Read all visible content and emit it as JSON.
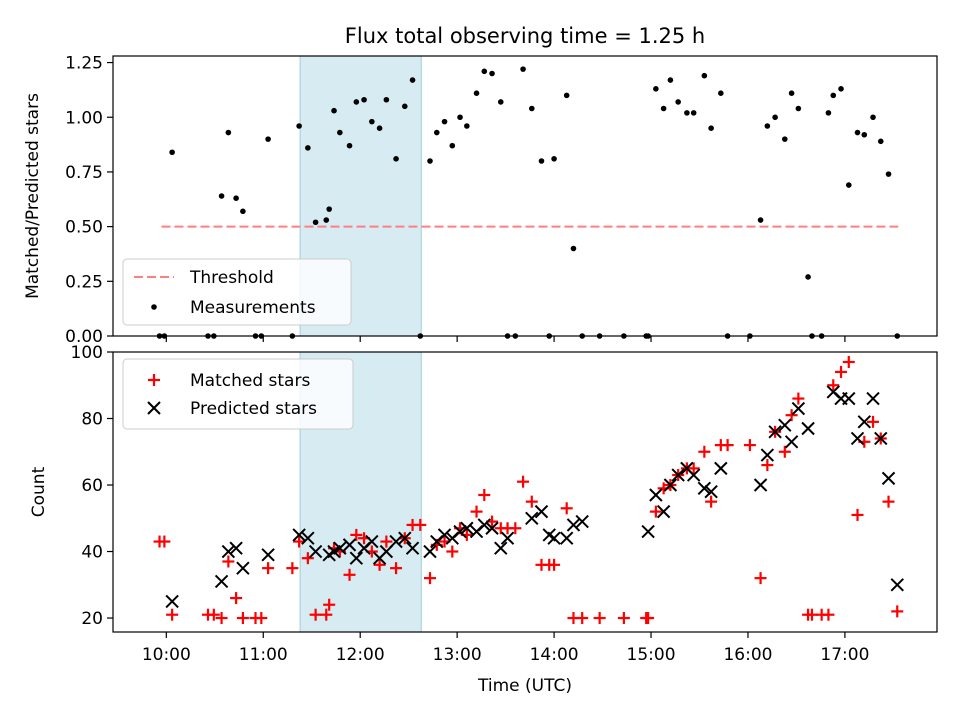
{
  "title": "Flux total observing time = 1.25 h",
  "chart_data": [
    {
      "type": "scatter",
      "panel": "top",
      "ylabel": "Matched/Predicted stars",
      "ylim": [
        0,
        1.28
      ],
      "yticks": [
        0.0,
        0.25,
        0.5,
        0.75,
        1.0,
        1.25
      ],
      "ytick_labels": [
        "0.00",
        "0.25",
        "0.50",
        "0.75",
        "1.00",
        "1.25"
      ],
      "xlim": [
        9.45,
        17.95
      ],
      "highlight_span": {
        "from": 11.38,
        "to": 12.63,
        "color": "#add8e6"
      },
      "legend_position": "lower-left",
      "threshold": {
        "name": "Threshold",
        "x": [
          9.95,
          17.55
        ],
        "y": 0.5,
        "color": "#ff7f7f",
        "style": "dashed"
      },
      "series": [
        {
          "name": "Measurements",
          "color": "#000000",
          "marker": "dot",
          "x": [
            9.93,
            9.98,
            10.06,
            10.43,
            10.49,
            10.57,
            10.64,
            10.72,
            10.79,
            10.92,
            10.98,
            11.05,
            11.3,
            11.37,
            11.46,
            11.54,
            11.65,
            11.68,
            11.73,
            11.79,
            11.89,
            11.96,
            12.04,
            12.12,
            12.2,
            12.27,
            12.37,
            12.46,
            12.54,
            12.62,
            12.72,
            12.79,
            12.87,
            12.95,
            13.03,
            13.1,
            13.2,
            13.28,
            13.36,
            13.45,
            13.52,
            13.6,
            13.68,
            13.77,
            13.87,
            13.95,
            14.0,
            14.13,
            14.2,
            14.29,
            14.47,
            14.72,
            14.95,
            14.97,
            15.05,
            15.13,
            15.2,
            15.28,
            15.37,
            15.44,
            15.55,
            15.62,
            15.72,
            15.79,
            16.02,
            16.13,
            16.2,
            16.28,
            16.38,
            16.45,
            16.52,
            16.62,
            16.66,
            16.76,
            16.83,
            16.88,
            16.96,
            17.04,
            17.13,
            17.2,
            17.29,
            17.37,
            17.45,
            17.54
          ],
          "y": [
            0.0,
            0.0,
            0.84,
            0.0,
            0.0,
            0.64,
            0.93,
            0.63,
            0.57,
            0.0,
            0.0,
            0.9,
            0.0,
            0.96,
            0.86,
            0.52,
            0.53,
            0.58,
            1.03,
            0.93,
            0.87,
            1.07,
            1.08,
            0.98,
            0.95,
            1.08,
            0.81,
            1.05,
            1.17,
            0.0,
            0.8,
            0.93,
            0.98,
            0.87,
            1.0,
            0.96,
            1.11,
            1.21,
            1.2,
            1.07,
            0.0,
            0.0,
            1.22,
            1.04,
            0.8,
            0.0,
            0.81,
            1.1,
            0.4,
            0.0,
            0.0,
            0.0,
            0.0,
            0.0,
            1.13,
            1.04,
            1.17,
            1.07,
            1.02,
            1.02,
            1.19,
            0.95,
            1.11,
            0.0,
            0.0,
            0.53,
            0.96,
            1.0,
            0.9,
            1.11,
            1.04,
            0.27,
            0.0,
            0.0,
            1.02,
            1.1,
            1.13,
            0.69,
            0.93,
            0.92,
            1.0,
            0.89,
            0.74,
            0.0
          ]
        }
      ]
    },
    {
      "type": "scatter",
      "panel": "bottom",
      "xlabel": "Time (UTC)",
      "ylabel": "Count",
      "ylim": [
        15.8,
        100
      ],
      "yticks": [
        20,
        40,
        60,
        80,
        100
      ],
      "xlim": [
        9.45,
        17.95
      ],
      "xticks": [
        10,
        11,
        12,
        13,
        14,
        15,
        16,
        17
      ],
      "xtick_labels": [
        "10:00",
        "11:00",
        "12:00",
        "13:00",
        "14:00",
        "15:00",
        "16:00",
        "17:00"
      ],
      "highlight_span": {
        "from": 11.38,
        "to": 12.63,
        "color": "#add8e6"
      },
      "legend_position": "top-left",
      "series": [
        {
          "name": "Matched stars",
          "color": "#ff0000",
          "marker": "plus",
          "x": [
            9.93,
            9.98,
            10.06,
            10.43,
            10.49,
            10.57,
            10.64,
            10.72,
            10.79,
            10.92,
            10.98,
            11.05,
            11.3,
            11.37,
            11.46,
            11.54,
            11.65,
            11.68,
            11.73,
            11.79,
            11.89,
            11.96,
            12.04,
            12.12,
            12.2,
            12.27,
            12.37,
            12.46,
            12.54,
            12.62,
            12.72,
            12.79,
            12.87,
            12.95,
            13.03,
            13.1,
            13.2,
            13.28,
            13.36,
            13.45,
            13.52,
            13.6,
            13.68,
            13.77,
            13.87,
            13.95,
            14.0,
            14.13,
            14.2,
            14.29,
            14.47,
            14.72,
            14.95,
            14.97,
            15.05,
            15.13,
            15.2,
            15.28,
            15.37,
            15.44,
            15.55,
            15.62,
            15.72,
            15.79,
            16.02,
            16.13,
            16.2,
            16.28,
            16.38,
            16.45,
            16.52,
            16.62,
            16.66,
            16.76,
            16.83,
            16.88,
            16.96,
            17.04,
            17.13,
            17.2,
            17.29,
            17.37,
            17.45,
            17.54
          ],
          "y": [
            43,
            43,
            21,
            21,
            21,
            20,
            37,
            26,
            20,
            20,
            20,
            35,
            35,
            43,
            38,
            21,
            21,
            24,
            41,
            40,
            33,
            45,
            44,
            40,
            36,
            43,
            35,
            44,
            48,
            48,
            32,
            42,
            43,
            40,
            47,
            45,
            52,
            57,
            49,
            47,
            47,
            47,
            61,
            55,
            36,
            36,
            36,
            53,
            20,
            20,
            20,
            20,
            20,
            20,
            52,
            59,
            60,
            63,
            65,
            65,
            70,
            55,
            72,
            72,
            72,
            32,
            66,
            76,
            70,
            81,
            86,
            21,
            21,
            21,
            21,
            90,
            94,
            97,
            51,
            73,
            79,
            74,
            55,
            22
          ]
        },
        {
          "name": "Predicted stars",
          "color": "#000000",
          "marker": "x",
          "x": [
            10.06,
            10.57,
            10.64,
            10.72,
            10.79,
            11.05,
            11.37,
            11.46,
            11.54,
            11.68,
            11.73,
            11.79,
            11.89,
            11.96,
            12.04,
            12.12,
            12.2,
            12.27,
            12.37,
            12.46,
            12.54,
            12.72,
            12.79,
            12.87,
            12.95,
            13.03,
            13.1,
            13.2,
            13.28,
            13.36,
            13.45,
            13.52,
            13.77,
            13.87,
            13.95,
            14.0,
            14.13,
            14.2,
            14.29,
            14.97,
            15.05,
            15.13,
            15.2,
            15.28,
            15.37,
            15.44,
            15.55,
            15.62,
            15.72,
            16.13,
            16.2,
            16.28,
            16.38,
            16.45,
            16.52,
            16.62,
            16.88,
            16.96,
            17.04,
            17.13,
            17.2,
            17.29,
            17.37,
            17.45,
            17.54
          ],
          "y": [
            25,
            31,
            40,
            41,
            35,
            39,
            45,
            44,
            40,
            39,
            40,
            41,
            42,
            38,
            41,
            43,
            38,
            40,
            43,
            44,
            41,
            40,
            43,
            45,
            44,
            46,
            47,
            46,
            48,
            47,
            41,
            44,
            50,
            52,
            45,
            44,
            44,
            48,
            49,
            46,
            57,
            52,
            60,
            63,
            65,
            63,
            59,
            58,
            65,
            60,
            69,
            76,
            78,
            73,
            83,
            77,
            88,
            86,
            86,
            74,
            79,
            86,
            74,
            62,
            30
          ]
        }
      ]
    }
  ]
}
